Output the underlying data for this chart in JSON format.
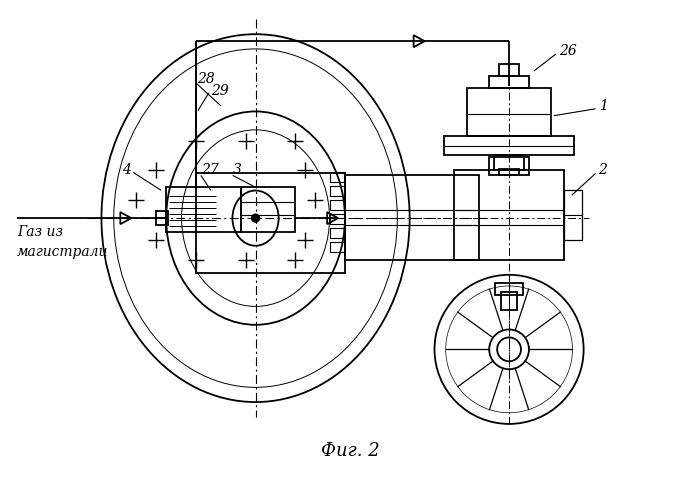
{
  "bg_color": "#ffffff",
  "line_color": "#000000",
  "fig_width": 6.99,
  "fig_height": 4.8,
  "dpi": 100,
  "fig_label": "Фиг. 2"
}
